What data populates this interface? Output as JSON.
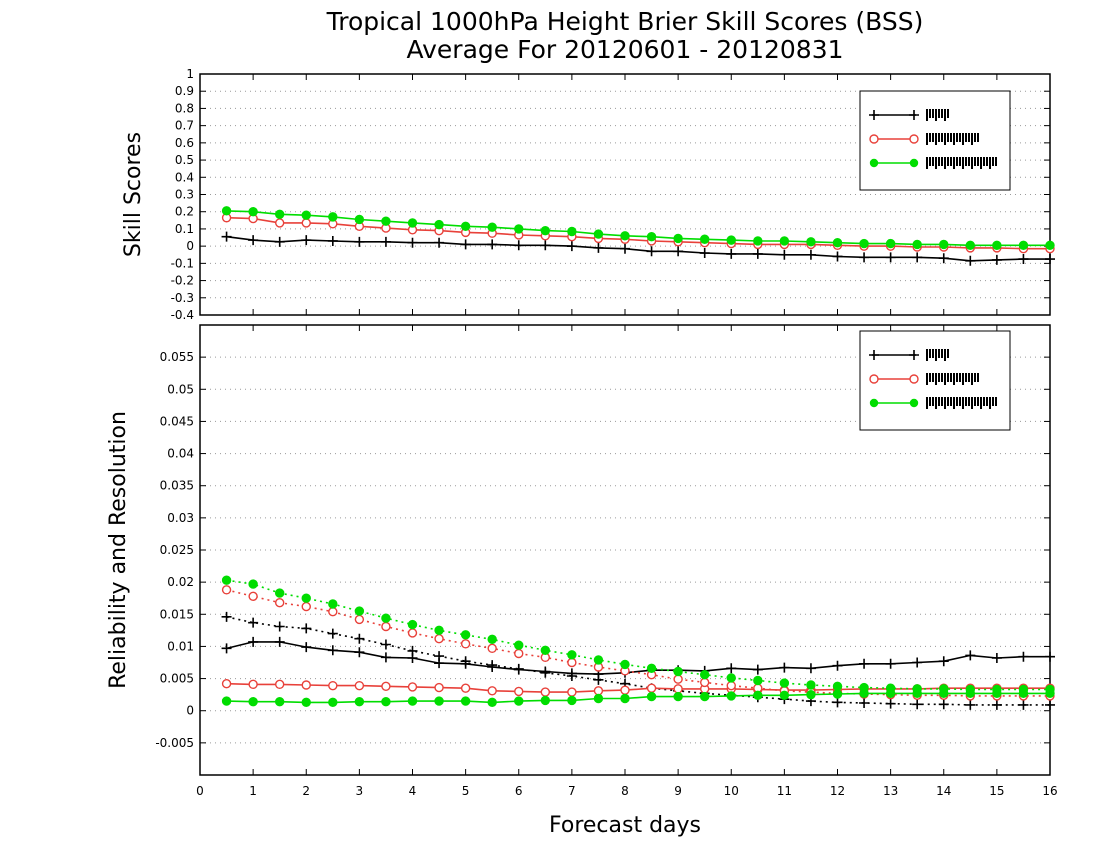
{
  "title_line1": "Tropical 1000hPa Height Brier Skill Scores (BSS)",
  "title_line2": "Average For 20120601 - 20120831",
  "xlabel": "Forecast days",
  "colors": {
    "exp1": "#000000",
    "exp2": "#e8413a",
    "exp3": "#00dd00"
  },
  "chart_data": [
    {
      "type": "line",
      "ylabel": "Skill Scores",
      "ylim": [
        -0.4,
        1.0
      ],
      "xlim": [
        0,
        16
      ],
      "grid": true,
      "legend_position": "top-right",
      "yticks": [
        "-0.4",
        "-0.3",
        "-0.2",
        "-0.1",
        "0",
        "0.1",
        "0.2",
        "0.3",
        "0.4",
        "0.5",
        "0.6",
        "0.7",
        "0.8",
        "0.9",
        "1"
      ],
      "x": [
        0.5,
        1,
        1.5,
        2,
        2.5,
        3,
        3.5,
        4,
        4.5,
        5,
        5.5,
        6,
        6.5,
        7,
        7.5,
        8,
        8.5,
        9,
        9.5,
        10,
        10.5,
        11,
        11.5,
        12,
        12.5,
        13,
        13.5,
        14,
        14.5,
        15,
        15.5,
        16
      ],
      "series": [
        {
          "marker": "plus",
          "color": "#000000",
          "style": "solid",
          "values": [
            0.055,
            0.035,
            0.025,
            0.035,
            0.03,
            0.025,
            0.025,
            0.02,
            0.02,
            0.01,
            0.01,
            0.005,
            0.005,
            0.0,
            -0.01,
            -0.015,
            -0.03,
            -0.03,
            -0.04,
            -0.045,
            -0.045,
            -0.05,
            -0.05,
            -0.06,
            -0.065,
            -0.065,
            -0.065,
            -0.07,
            -0.085,
            -0.08,
            -0.075,
            -0.075
          ]
        },
        {
          "marker": "circle",
          "color": "#e8413a",
          "style": "solid",
          "values": [
            0.165,
            0.16,
            0.135,
            0.135,
            0.13,
            0.115,
            0.105,
            0.095,
            0.09,
            0.08,
            0.075,
            0.065,
            0.06,
            0.055,
            0.045,
            0.04,
            0.03,
            0.025,
            0.02,
            0.015,
            0.01,
            0.01,
            0.01,
            0.005,
            0.0,
            0.0,
            -0.005,
            -0.005,
            -0.01,
            -0.01,
            -0.015,
            -0.015
          ]
        },
        {
          "marker": "dot",
          "color": "#00dd00",
          "style": "solid",
          "values": [
            0.205,
            0.2,
            0.185,
            0.18,
            0.17,
            0.155,
            0.145,
            0.135,
            0.125,
            0.115,
            0.11,
            0.1,
            0.09,
            0.085,
            0.07,
            0.06,
            0.055,
            0.045,
            0.04,
            0.035,
            0.03,
            0.03,
            0.025,
            0.02,
            0.015,
            0.015,
            0.01,
            0.01,
            0.005,
            0.005,
            0.005,
            0.005
          ]
        }
      ]
    },
    {
      "type": "line",
      "ylabel": "Reliability and Resolution",
      "ylim": [
        -0.01,
        0.06
      ],
      "xlim": [
        0,
        16
      ],
      "grid": true,
      "legend_position": "top-right",
      "yticks": [
        "-0.005",
        "0",
        "0.005",
        "0.01",
        "0.015",
        "0.02",
        "0.025",
        "0.03",
        "0.035",
        "0.04",
        "0.045",
        "0.05",
        "0.055"
      ],
      "xticks": [
        "0",
        "1",
        "2",
        "3",
        "4",
        "5",
        "6",
        "7",
        "8",
        "9",
        "10",
        "11",
        "12",
        "13",
        "14",
        "15",
        "16"
      ],
      "x": [
        0.5,
        1,
        1.5,
        2,
        2.5,
        3,
        3.5,
        4,
        4.5,
        5,
        5.5,
        6,
        6.5,
        7,
        7.5,
        8,
        8.5,
        9,
        9.5,
        10,
        10.5,
        11,
        11.5,
        12,
        12.5,
        13,
        13.5,
        14,
        14.5,
        15,
        15.5,
        16
      ],
      "series": [
        {
          "marker": "plus",
          "color": "#000000",
          "style": "solid",
          "values": [
            0.0097,
            0.0107,
            0.0107,
            0.0099,
            0.0094,
            0.0091,
            0.0083,
            0.0082,
            0.0074,
            0.0073,
            0.0068,
            0.0064,
            0.0061,
            0.0058,
            0.0057,
            0.0059,
            0.0063,
            0.0063,
            0.0062,
            0.0066,
            0.0064,
            0.0067,
            0.0066,
            0.007,
            0.0073,
            0.0073,
            0.0075,
            0.0077,
            0.0086,
            0.0082,
            0.0084,
            0.0084
          ]
        },
        {
          "marker": "plus",
          "color": "#000000",
          "style": "dotted",
          "values": [
            0.0146,
            0.0137,
            0.0131,
            0.0128,
            0.012,
            0.0112,
            0.0103,
            0.0093,
            0.0085,
            0.0077,
            0.0071,
            0.0065,
            0.0059,
            0.0054,
            0.0048,
            0.0042,
            0.0035,
            0.0031,
            0.0027,
            0.0024,
            0.0021,
            0.0018,
            0.0015,
            0.0013,
            0.0012,
            0.0011,
            0.001,
            0.001,
            0.0009,
            0.0009,
            0.0009,
            0.0009
          ]
        },
        {
          "marker": "circle",
          "color": "#e8413a",
          "style": "solid",
          "values": [
            0.0042,
            0.0041,
            0.0041,
            0.004,
            0.0039,
            0.0039,
            0.0038,
            0.0037,
            0.0036,
            0.0035,
            0.0031,
            0.003,
            0.0029,
            0.0029,
            0.0031,
            0.0032,
            0.0035,
            0.0034,
            0.0034,
            0.0034,
            0.0033,
            0.0032,
            0.0032,
            0.0033,
            0.0034,
            0.0034,
            0.0034,
            0.0035,
            0.0035,
            0.0035,
            0.0035,
            0.0035
          ]
        },
        {
          "marker": "circle",
          "color": "#e8413a",
          "style": "dotted",
          "values": [
            0.0188,
            0.0178,
            0.0168,
            0.0162,
            0.0154,
            0.0142,
            0.0131,
            0.0121,
            0.0112,
            0.0104,
            0.0097,
            0.0089,
            0.0083,
            0.0075,
            0.0068,
            0.0062,
            0.0056,
            0.0049,
            0.0044,
            0.0039,
            0.0035,
            0.0031,
            0.0029,
            0.0027,
            0.0026,
            0.0025,
            0.0024,
            0.0024,
            0.0023,
            0.0023,
            0.0023,
            0.0023
          ]
        },
        {
          "marker": "dot",
          "color": "#00dd00",
          "style": "solid",
          "values": [
            0.0015,
            0.0014,
            0.0014,
            0.0013,
            0.0013,
            0.0014,
            0.0014,
            0.0015,
            0.0015,
            0.0015,
            0.0013,
            0.0015,
            0.0016,
            0.0016,
            0.0019,
            0.0019,
            0.0022,
            0.0022,
            0.0022,
            0.0023,
            0.0024,
            0.0024,
            0.0025,
            0.0026,
            0.0027,
            0.0027,
            0.0027,
            0.0027,
            0.0027,
            0.0027,
            0.0027,
            0.0027
          ]
        },
        {
          "marker": "dot",
          "color": "#00dd00",
          "style": "dotted",
          "values": [
            0.0203,
            0.0197,
            0.0183,
            0.0175,
            0.0166,
            0.0155,
            0.0144,
            0.0134,
            0.0125,
            0.0118,
            0.0111,
            0.0102,
            0.0094,
            0.0087,
            0.0079,
            0.0072,
            0.0066,
            0.0061,
            0.0056,
            0.0051,
            0.0047,
            0.0043,
            0.004,
            0.0038,
            0.0036,
            0.0035,
            0.0034,
            0.0034,
            0.0033,
            0.0033,
            0.0033,
            0.0033
          ]
        }
      ]
    }
  ]
}
